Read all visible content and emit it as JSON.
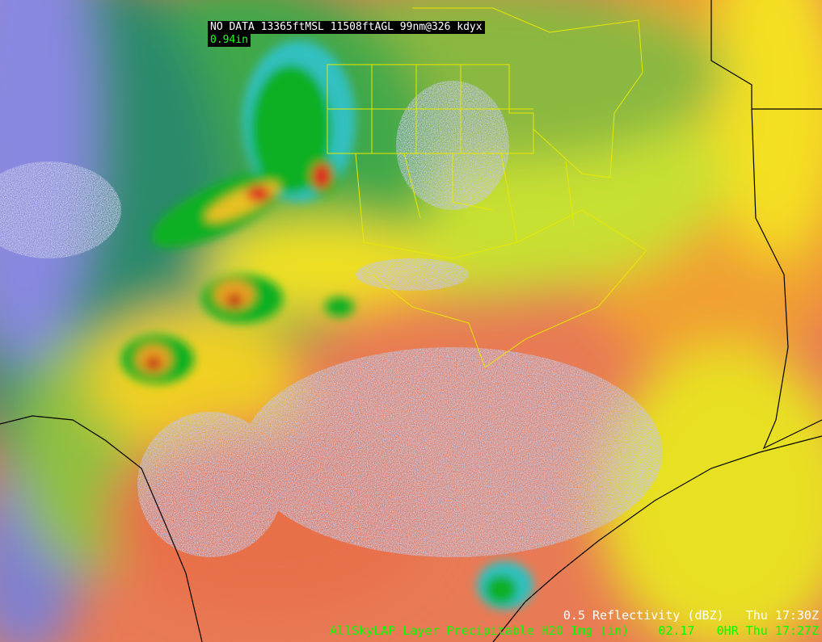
{
  "sample_readout": {
    "line1": "NO DATA 13365ftMSL 11508ftAGL 99nm@326 kdyx",
    "line2": "0.94in"
  },
  "legend": [
    {
      "product": "0.5 Reflectivity (dBZ)",
      "value": "",
      "time": "Thu 17:30Z",
      "color": "#ffffff"
    },
    {
      "product": "AllSkyLAP Layer Precipitable H2O Img (in)",
      "value": "02.17",
      "time": "0HR Thu 17:27Z",
      "color": "#00ff00"
    }
  ],
  "colors": {
    "county_lines": "#e8e800",
    "state_lines": "#000000",
    "pw_low": "#8a8ae8",
    "pw_mid": "#2f9a5a",
    "pw_high": "#e86a50",
    "radar_light": "#8890c8",
    "radar_moderate": "#10b010",
    "radar_heavy": "#e02020"
  }
}
